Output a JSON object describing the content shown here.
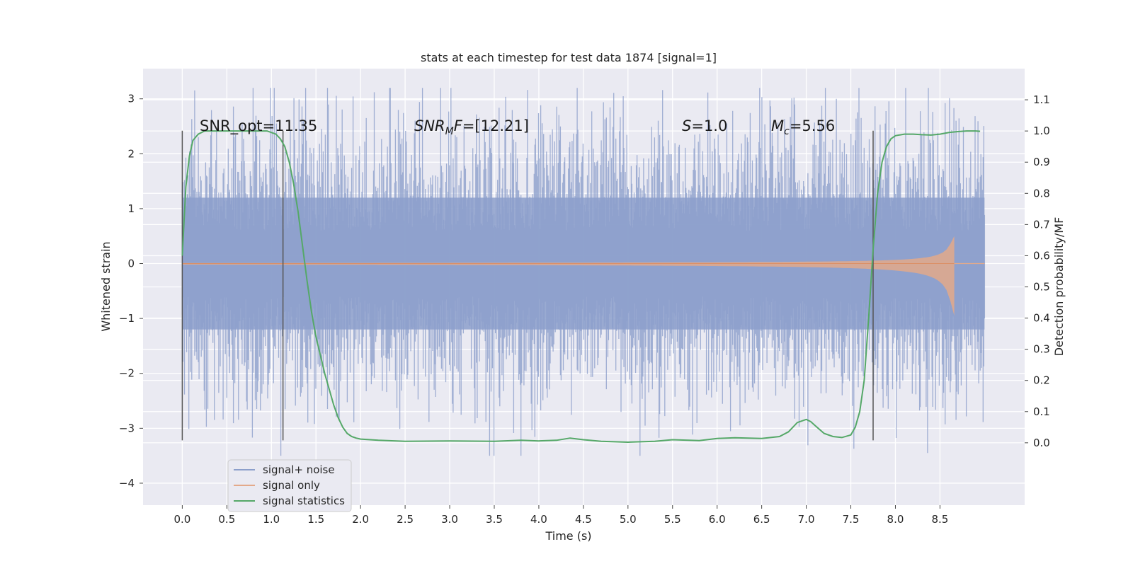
{
  "chart_data": {
    "type": "line",
    "title": "stats at each timestep for test data 1874 [signal=1]",
    "xlabel": "Time (s)",
    "ylabel": "Whitened strain",
    "ylabel_right": "Detection probability/MF",
    "xlim": [
      -0.44,
      9.45
    ],
    "ylim": [
      -4.4,
      3.55
    ],
    "ylim_right": [
      -0.2,
      1.2
    ],
    "x_ticks": [
      "0.0",
      "0.5",
      "1.0",
      "1.5",
      "2.0",
      "2.5",
      "3.0",
      "3.5",
      "4.0",
      "4.5",
      "5.0",
      "5.5",
      "6.0",
      "6.5",
      "7.0",
      "7.5",
      "8.0",
      "8.5"
    ],
    "y_ticks": [
      "3",
      "2",
      "1",
      "0",
      "−1",
      "−2",
      "−3",
      "−4"
    ],
    "y_tick_values": [
      3,
      2,
      1,
      0,
      -1,
      -2,
      -3,
      -4
    ],
    "y_right_ticks": [
      "1.1",
      "1.0",
      "0.9",
      "0.8",
      "0.7",
      "0.6",
      "0.5",
      "0.4",
      "0.3",
      "0.2",
      "0.1",
      "0.0"
    ],
    "y_right_tick_values": [
      1.1,
      1.0,
      0.9,
      0.8,
      0.7,
      0.6,
      0.5,
      0.4,
      0.3,
      0.2,
      0.1,
      0.0
    ],
    "grid": true,
    "legend_position": "lower-left",
    "annotations": {
      "snr_opt": "SNR_opt=11.35",
      "snr_mf_prefix": "SNR",
      "snr_mf_sub": "M",
      "snr_mf_mid": "F",
      "snr_mf_value": "=[12.21]",
      "s_letter": "S",
      "s_value": "=1.0",
      "mc_letter": "M",
      "mc_sub": "c",
      "mc_value": "=5.56"
    },
    "vertical_markers": [
      0.0,
      1.13,
      7.75
    ],
    "marker_range": [
      -3.22,
      2.42
    ],
    "series": [
      {
        "name": "signal+ noise",
        "color": "#8c9fcb",
        "x_range": [
          0.0,
          9.0
        ],
        "band_1sigma": 1.2,
        "peak_envelope": [
          -3.5,
          3.2
        ]
      },
      {
        "name": "signal only",
        "color": "#dd8452",
        "x_range": [
          0.0,
          8.66
        ],
        "amplitude_start": 0.02,
        "amplitude_end": 1.0,
        "cutoff": 8.66
      },
      {
        "name": "signal statistics",
        "color": "#55a868",
        "axis": "right",
        "x": [
          0.0,
          0.04,
          0.08,
          0.12,
          0.18,
          0.25,
          0.35,
          0.5,
          0.7,
          0.85,
          0.95,
          1.0,
          1.05,
          1.1,
          1.15,
          1.2,
          1.25,
          1.3,
          1.35,
          1.4,
          1.45,
          1.5,
          1.55,
          1.6,
          1.65,
          1.7,
          1.75,
          1.8,
          1.85,
          1.9,
          1.95,
          2.0,
          2.2,
          2.5,
          3.0,
          3.5,
          3.8,
          4.0,
          4.2,
          4.35,
          4.5,
          4.7,
          5.0,
          5.3,
          5.5,
          5.8,
          6.0,
          6.2,
          6.5,
          6.7,
          6.8,
          6.9,
          7.0,
          7.05,
          7.1,
          7.2,
          7.3,
          7.4,
          7.5,
          7.55,
          7.6,
          7.65,
          7.7,
          7.75,
          7.8,
          7.85,
          7.9,
          7.95,
          8.0,
          8.1,
          8.2,
          8.3,
          8.4,
          8.5,
          8.6,
          8.7,
          8.8,
          8.9,
          8.95
        ],
        "values": [
          0.6,
          0.82,
          0.92,
          0.97,
          0.99,
          1.0,
          1.0,
          1.0,
          1.0,
          1.0,
          1.0,
          0.995,
          0.99,
          0.975,
          0.95,
          0.9,
          0.83,
          0.74,
          0.63,
          0.52,
          0.42,
          0.34,
          0.28,
          0.22,
          0.17,
          0.12,
          0.08,
          0.05,
          0.03,
          0.02,
          0.015,
          0.012,
          0.008,
          0.005,
          0.006,
          0.005,
          0.008,
          0.006,
          0.008,
          0.015,
          0.01,
          0.005,
          0.002,
          0.005,
          0.01,
          0.007,
          0.014,
          0.016,
          0.014,
          0.02,
          0.035,
          0.065,
          0.075,
          0.068,
          0.055,
          0.03,
          0.02,
          0.017,
          0.025,
          0.05,
          0.1,
          0.2,
          0.4,
          0.62,
          0.8,
          0.9,
          0.95,
          0.975,
          0.985,
          0.99,
          0.99,
          0.988,
          0.987,
          0.99,
          0.995,
          0.998,
          1.0,
          1.0,
          0.999
        ]
      }
    ]
  }
}
